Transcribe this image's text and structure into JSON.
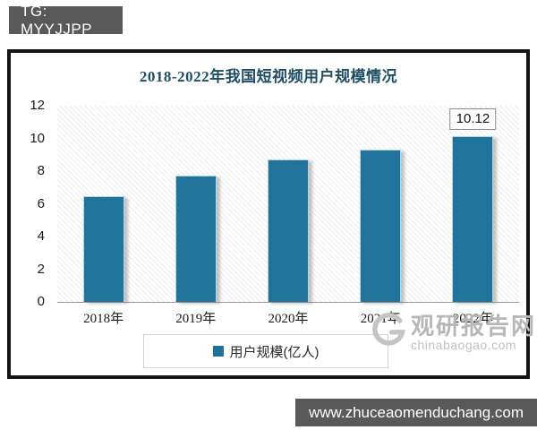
{
  "badge": {
    "text": "TG: MYYJJPP"
  },
  "footer": {
    "url": "www.zhuceaomenduchang.com"
  },
  "watermark": {
    "name": "观研报告网",
    "domain": "chinabaogao.com"
  },
  "chart_data": {
    "type": "bar",
    "title": "2018-2022年我国短视频用户规模情况",
    "categories": [
      "2018年",
      "2019年",
      "2020年",
      "2021年",
      "2022年"
    ],
    "values": [
      6.48,
      7.73,
      8.73,
      9.34,
      10.12
    ],
    "xlabel": "",
    "ylabel": "",
    "ylim": [
      0,
      12
    ],
    "yticks": [
      12,
      10,
      8,
      6,
      4,
      2,
      0
    ],
    "grid": false,
    "legend": [
      "用户规模(亿人)"
    ],
    "legend_position": "bottom",
    "data_labels": {
      "2022年": "10.12"
    },
    "bar_color": "#20739A",
    "bar_border_color": "#b7d3e6",
    "title_color": "#1F4E63",
    "badge_bg_color": "#595959"
  }
}
